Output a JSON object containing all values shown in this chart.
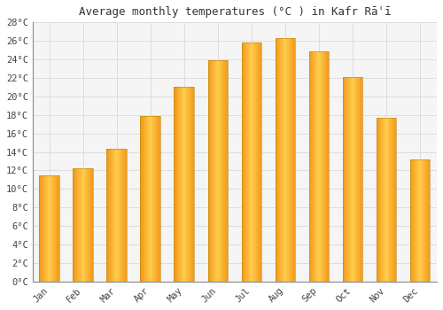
{
  "title": "Average monthly temperatures (°C ) in Kafr Rāʿī",
  "months": [
    "Jan",
    "Feb",
    "Mar",
    "Apr",
    "May",
    "Jun",
    "Jul",
    "Aug",
    "Sep",
    "Oct",
    "Nov",
    "Dec"
  ],
  "values": [
    11.5,
    12.2,
    14.3,
    17.9,
    21.0,
    23.9,
    25.8,
    26.3,
    24.9,
    22.1,
    17.7,
    13.2
  ],
  "bar_color_main": "#FFA500",
  "bar_color_edge": "#E08000",
  "bar_color_light": "#FFD070",
  "background_color": "#FFFFFF",
  "plot_bg_color": "#F5F5F5",
  "grid_color": "#DDDDDD",
  "ylim": [
    0,
    28
  ],
  "yticks": [
    0,
    2,
    4,
    6,
    8,
    10,
    12,
    14,
    16,
    18,
    20,
    22,
    24,
    26,
    28
  ],
  "title_fontsize": 9,
  "tick_fontsize": 7.5,
  "font_family": "monospace",
  "bar_width": 0.6
}
